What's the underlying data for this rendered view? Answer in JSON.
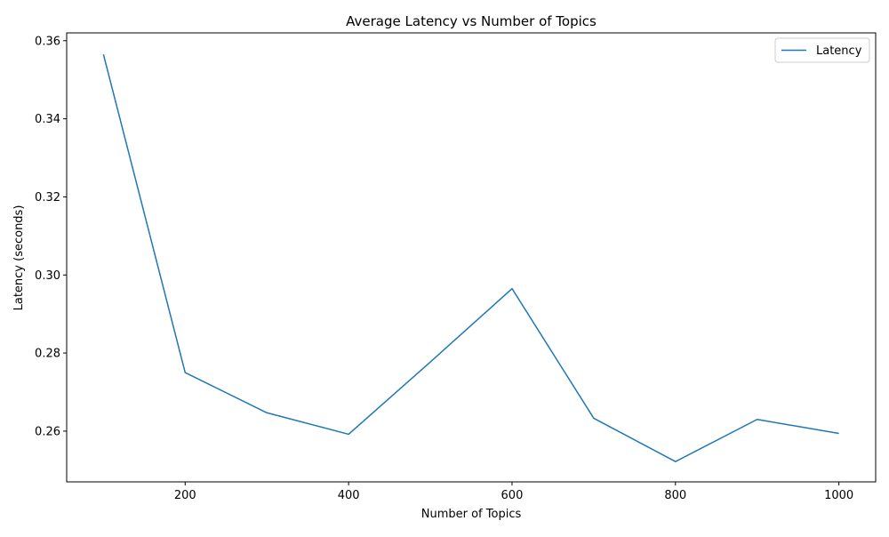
{
  "chart_data": {
    "type": "line",
    "title": "Average Latency vs Number of Topics",
    "xlabel": "Number of Topics",
    "ylabel": "Latency (seconds)",
    "x": [
      100,
      200,
      300,
      400,
      500,
      600,
      700,
      800,
      900,
      1000
    ],
    "series": [
      {
        "name": "Latency",
        "color": "#1f77b4",
        "values": [
          0.3565,
          0.275,
          0.2647,
          0.2592,
          0.2777,
          0.2965,
          0.2633,
          0.2522,
          0.263,
          0.2594
        ]
      }
    ],
    "xlim": [
      55,
      1045
    ],
    "ylim": [
      0.247,
      0.362
    ],
    "xticks": [
      200,
      400,
      600,
      800,
      1000
    ],
    "yticks": [
      0.26,
      0.28,
      0.3,
      0.32,
      0.34,
      0.36
    ],
    "ytick_labels": [
      "0.26",
      "0.28",
      "0.30",
      "0.32",
      "0.34",
      "0.36"
    ],
    "grid": false,
    "legend_position": "top-right"
  }
}
